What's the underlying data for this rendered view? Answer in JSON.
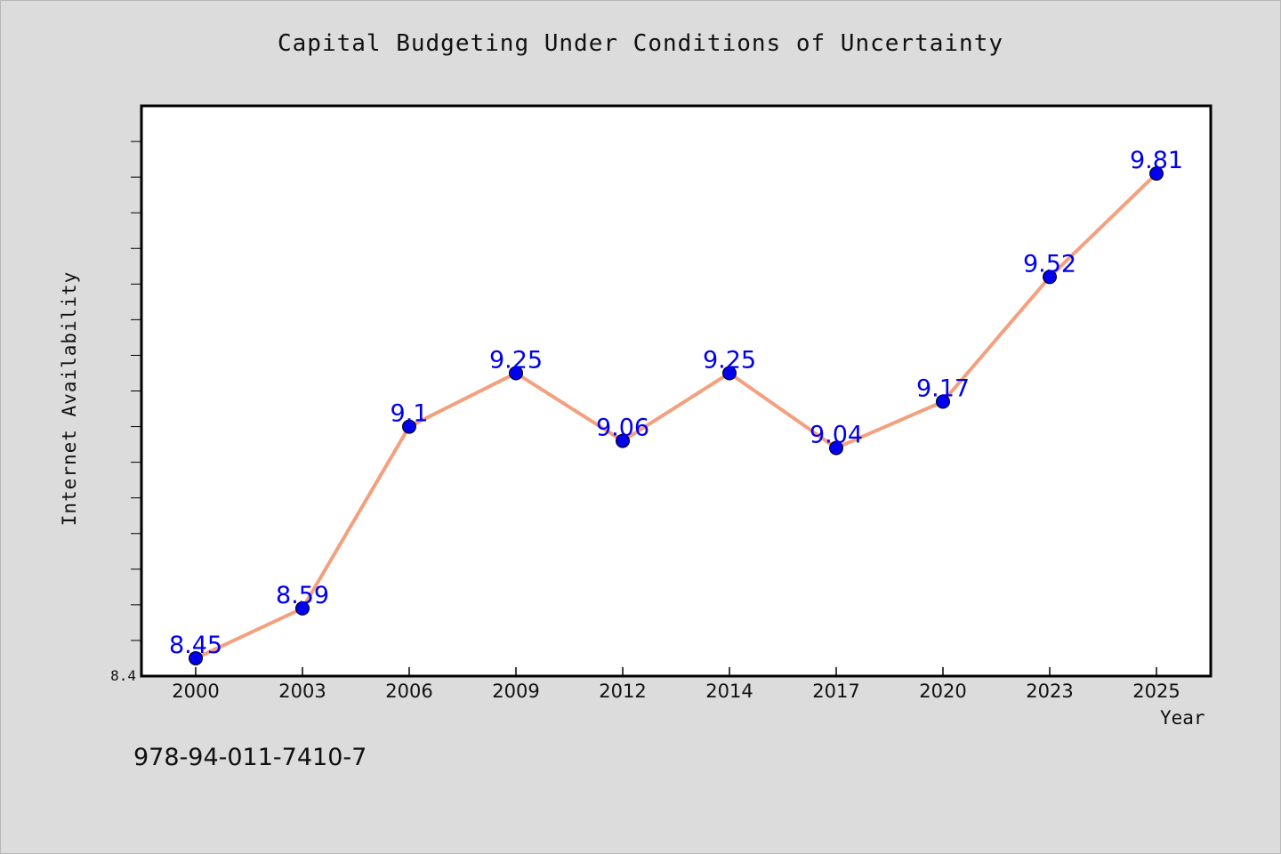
{
  "chart_data": {
    "type": "line",
    "title": "Capital Budgeting Under Conditions of Uncertainty",
    "xlabel": "Year",
    "ylabel": "Internet Availability",
    "categories": [
      "2000",
      "2003",
      "2006",
      "2009",
      "2012",
      "2014",
      "2017",
      "2020",
      "2023",
      "2025"
    ],
    "series": [
      {
        "values": [
          8.45,
          8.59,
          9.1,
          9.25,
          9.06,
          9.25,
          9.04,
          9.17,
          9.52,
          9.81
        ]
      }
    ],
    "data_labels": [
      "8.45",
      "8.59",
      "9.1",
      "9.25",
      "9.06",
      "9.25",
      "9.04",
      "9.17",
      "9.52",
      "9.81"
    ],
    "ylim": [
      8.4,
      10.0
    ],
    "ytick_step": 0.1,
    "ytick_labels": [
      {
        "value": 8.4,
        "label": "8.4"
      }
    ],
    "grid": false,
    "line_color": "#f4a07e",
    "marker_color": "#0000ee",
    "label_color": "#0000ee"
  },
  "annotation": {
    "isbn": "978-94-011-7410-7"
  }
}
